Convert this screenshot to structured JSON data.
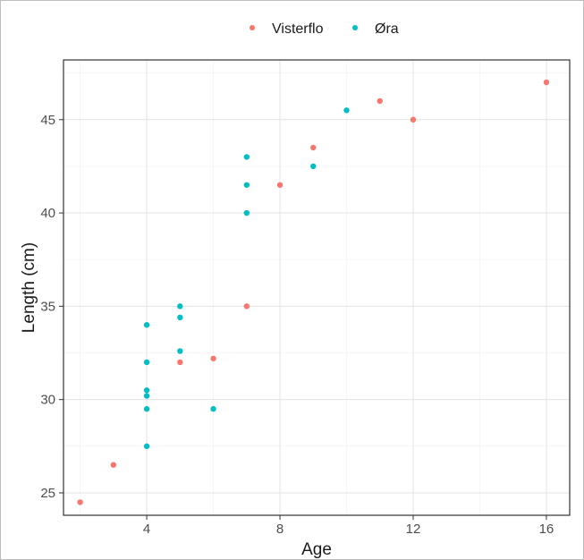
{
  "chart_data": {
    "type": "scatter",
    "title": "",
    "xlabel": "Age",
    "ylabel": "Length (cm)",
    "xlim": [
      1.5,
      16.7
    ],
    "ylim": [
      23.8,
      48.2
    ],
    "x_ticks": [
      4,
      8,
      12,
      16
    ],
    "y_ticks": [
      25,
      30,
      35,
      40,
      45
    ],
    "grid": true,
    "legend_position": "top",
    "series": [
      {
        "name": "Visterflo",
        "color": "#F8766D",
        "points": [
          {
            "x": 2,
            "y": 24.5
          },
          {
            "x": 3,
            "y": 26.5
          },
          {
            "x": 5,
            "y": 32.0
          },
          {
            "x": 6,
            "y": 32.2
          },
          {
            "x": 7,
            "y": 35.0
          },
          {
            "x": 8,
            "y": 41.5
          },
          {
            "x": 9,
            "y": 43.5
          },
          {
            "x": 11,
            "y": 46.0
          },
          {
            "x": 12,
            "y": 45.0
          },
          {
            "x": 16,
            "y": 47.0
          }
        ]
      },
      {
        "name": "Øra",
        "color": "#00BFC4",
        "points": [
          {
            "x": 4,
            "y": 27.5
          },
          {
            "x": 4,
            "y": 29.5
          },
          {
            "x": 4,
            "y": 30.2
          },
          {
            "x": 4,
            "y": 30.5
          },
          {
            "x": 4,
            "y": 32.0
          },
          {
            "x": 4,
            "y": 34.0
          },
          {
            "x": 5,
            "y": 32.6
          },
          {
            "x": 5,
            "y": 34.4
          },
          {
            "x": 5,
            "y": 35.0
          },
          {
            "x": 6,
            "y": 29.5
          },
          {
            "x": 7,
            "y": 40.0
          },
          {
            "x": 7,
            "y": 41.5
          },
          {
            "x": 7,
            "y": 43.0
          },
          {
            "x": 9,
            "y": 42.5
          },
          {
            "x": 10,
            "y": 45.5
          }
        ]
      }
    ]
  }
}
